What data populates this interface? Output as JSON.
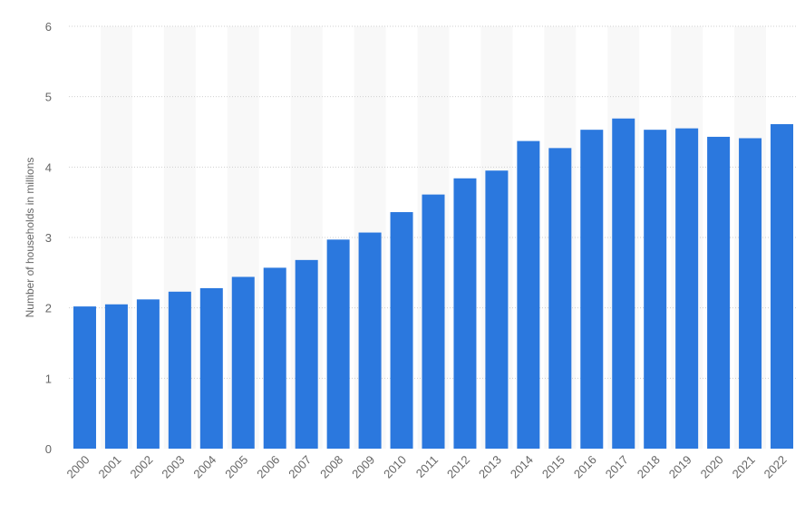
{
  "chart_data": {
    "type": "bar",
    "categories": [
      "2000",
      "2001",
      "2002",
      "2003",
      "2004",
      "2005",
      "2006",
      "2007",
      "2008",
      "2009",
      "2010",
      "2011",
      "2012",
      "2013",
      "2014",
      "2015",
      "2016",
      "2017",
      "2018",
      "2019",
      "2020",
      "2021",
      "2022"
    ],
    "series": [
      {
        "values": [
          2.02,
          2.05,
          2.12,
          2.23,
          2.28,
          2.44,
          2.57,
          2.68,
          2.97,
          3.07,
          3.36,
          3.61,
          3.84,
          3.95,
          4.37,
          4.27,
          4.53,
          4.69,
          4.53,
          4.55,
          4.43,
          4.41,
          4.61
        ],
        "color": "#2b78de"
      }
    ],
    "title": "",
    "xlabel": "",
    "ylabel": "Number of households in millions",
    "ylim": [
      0,
      6
    ],
    "yticks": [
      "0",
      "1",
      "2",
      "3",
      "4",
      "5",
      "6"
    ],
    "grid": true,
    "alternating_column_bands": true,
    "band_color": "#f8f8f8",
    "gridline_color": "#cfcfcf",
    "tick_color": "#666666"
  }
}
